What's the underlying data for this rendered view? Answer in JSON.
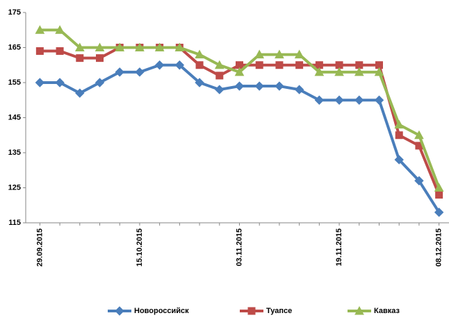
{
  "chart_data": {
    "type": "line",
    "categories": [
      "29.09.2015",
      null,
      null,
      null,
      null,
      "15.10.2015",
      null,
      null,
      null,
      null,
      "03.11.2015",
      null,
      null,
      null,
      null,
      "19.11.2015",
      null,
      null,
      null,
      null,
      "08.12.2015"
    ],
    "series": [
      {
        "name": "Новороссийск",
        "color": "#4a7ebb",
        "marker": "diamond",
        "values": [
          155,
          155,
          152,
          155,
          158,
          158,
          160,
          160,
          155,
          153,
          154,
          154,
          154,
          153,
          150,
          150,
          150,
          150,
          133,
          127,
          118
        ]
      },
      {
        "name": "Туапсе",
        "color": "#be4b48",
        "marker": "square",
        "values": [
          164,
          164,
          162,
          162,
          165,
          165,
          165,
          165,
          160,
          157,
          160,
          160,
          160,
          160,
          160,
          160,
          160,
          160,
          140,
          137,
          123
        ]
      },
      {
        "name": "Кавказ",
        "color": "#98b954",
        "marker": "triangle",
        "values": [
          170,
          170,
          165,
          165,
          165,
          165,
          165,
          165,
          163,
          160,
          158,
          163,
          163,
          163,
          158,
          158,
          158,
          158,
          143,
          140,
          125
        ]
      }
    ],
    "ylim": [
      115,
      175
    ],
    "yticks": [
      115,
      125,
      135,
      145,
      155,
      165,
      175
    ],
    "grid": false,
    "legend": "bottom"
  }
}
